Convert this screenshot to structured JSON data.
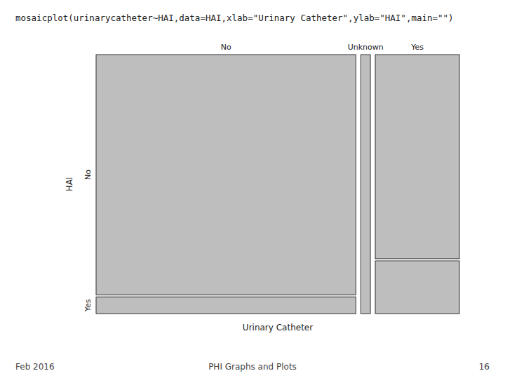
{
  "chart_data": {
    "type": "mosaic",
    "title": "mosaicplot(urinarycatheter~HAI,data=HAI,xlab=\"Urinary Catheter\",ylab=\"HAI\",main=\"\")",
    "x_label": "Urinary Catheter",
    "y_label": "HAI",
    "categories": [
      "No",
      "Unknown",
      "Yes"
    ],
    "widths": [
      0.735,
      0.027,
      0.238
    ],
    "series": [
      {
        "name": "No",
        "values": [
          0.935,
          1.0,
          0.795
        ]
      },
      {
        "name": "Yes",
        "values": [
          0.065,
          0.0,
          0.205
        ]
      }
    ],
    "color": "#BEBEBE",
    "annotations": [
      "Feb 2016",
      "PHI Graphs and Plots",
      "16"
    ]
  }
}
